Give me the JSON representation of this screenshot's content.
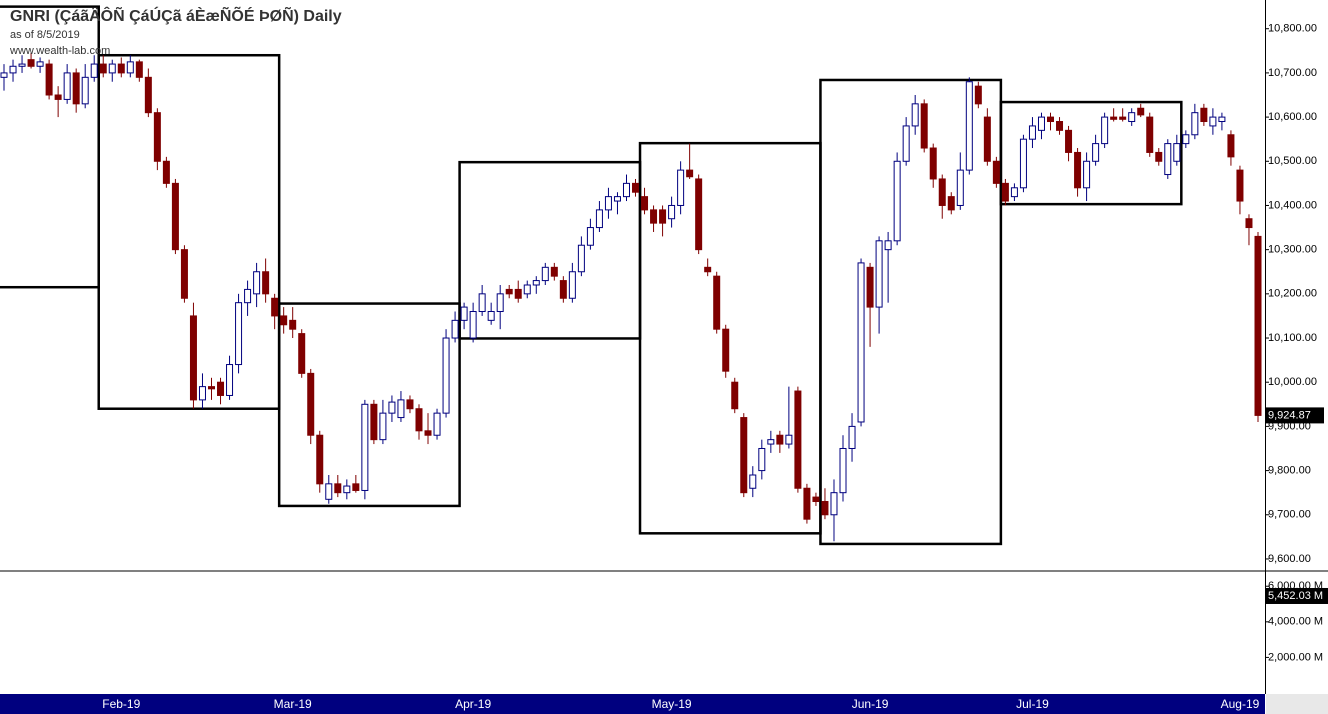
{
  "chart_data": {
    "type": "candlestick",
    "title": "GNRI (ÇáãÄÔÑ ÇáÚÇã áÈæÑÕÉ ÞØÑ) Daily",
    "subtitle": "as of 8/5/2019",
    "source": "www.wealth-lab.com",
    "categories": [
      null,
      null,
      null,
      null,
      null,
      null,
      null,
      null,
      null,
      null,
      null,
      null,
      null,
      "Feb-19",
      null,
      null,
      null,
      null,
      null,
      null,
      null,
      null,
      null,
      null,
      null,
      null,
      null,
      null,
      null,
      null,
      null,
      null,
      "Mar-19",
      null,
      null,
      null,
      null,
      null,
      null,
      null,
      null,
      null,
      null,
      null,
      null,
      null,
      null,
      null,
      null,
      null,
      null,
      null,
      "Apr-19",
      null,
      null,
      null,
      null,
      null,
      null,
      null,
      null,
      null,
      null,
      null,
      null,
      null,
      null,
      null,
      null,
      null,
      null,
      null,
      null,
      null,
      "May-19",
      null,
      null,
      null,
      null,
      null,
      null,
      null,
      null,
      null,
      null,
      null,
      null,
      null,
      null,
      null,
      null,
      null,
      null,
      null,
      null,
      null,
      "Jun-19",
      null,
      null,
      null,
      null,
      null,
      null,
      null,
      null,
      null,
      null,
      null,
      null,
      null,
      null,
      null,
      null,
      null,
      "Jul-19",
      null,
      null,
      null,
      null,
      null,
      null,
      null,
      null,
      null,
      null,
      null,
      null,
      null,
      null,
      null,
      null,
      null,
      null,
      null,
      null,
      null,
      null,
      "Aug-19",
      null,
      null
    ],
    "open": [
      10690,
      10700,
      10715,
      10730,
      10715,
      10720,
      10650,
      10640,
      10700,
      10630,
      10690,
      10720,
      10700,
      10720,
      10700,
      10725,
      10690,
      10610,
      10500,
      10450,
      10300,
      10150,
      9960,
      9990,
      10000,
      9970,
      10040,
      10180,
      10200,
      10250,
      10190,
      10150,
      10140,
      10110,
      10020,
      9880,
      9735,
      9770,
      9750,
      9770,
      9755,
      9950,
      9870,
      9930,
      9920,
      9960,
      9940,
      9890,
      9880,
      9930,
      10100,
      10140,
      10100,
      10160,
      10140,
      10160,
      10210,
      10210,
      10200,
      10220,
      10230,
      10260,
      10230,
      10190,
      10250,
      10310,
      10350,
      10390,
      10410,
      10420,
      10450,
      10420,
      10390,
      10390,
      10370,
      10400,
      10480,
      10460,
      10260,
      10240,
      10120,
      10000,
      9920,
      9760,
      9800,
      9860,
      9880,
      9860,
      9980,
      9760,
      9740,
      9730,
      9700,
      9750,
      9850,
      9910,
      10260,
      10170,
      10300,
      10320,
      10500,
      10580,
      10630,
      10530,
      10460,
      10420,
      10400,
      10480,
      10670,
      10600,
      10500,
      10450,
      10420,
      10440,
      10550,
      10570,
      10600,
      10590,
      10570,
      10520,
      10440,
      10500,
      10540,
      10600,
      10600,
      10590,
      10620,
      10600,
      10520,
      10470,
      10500,
      10540,
      10560,
      10620,
      10580,
      10590,
      10560,
      10480,
      10370,
      10330
    ],
    "high": [
      10720,
      10730,
      10740,
      10745,
      10735,
      10730,
      10670,
      10720,
      10710,
      10720,
      10740,
      10740,
      10730,
      10735,
      10740,
      10730,
      10710,
      10620,
      10510,
      10460,
      10310,
      10180,
      10020,
      10010,
      10010,
      10060,
      10200,
      10230,
      10270,
      10280,
      10200,
      10170,
      10170,
      10120,
      10030,
      9890,
      9790,
      9790,
      9780,
      9790,
      9960,
      9960,
      9960,
      9970,
      9980,
      9970,
      9950,
      9930,
      9940,
      10120,
      10160,
      10180,
      10180,
      10220,
      10180,
      10220,
      10220,
      10230,
      10230,
      10240,
      10270,
      10270,
      10240,
      10270,
      10330,
      10370,
      10410,
      10440,
      10430,
      10470,
      10460,
      10440,
      10400,
      10400,
      10420,
      10500,
      10540,
      10470,
      10280,
      10250,
      10130,
      10010,
      9930,
      9810,
      9870,
      9890,
      9890,
      9990,
      9990,
      9770,
      9750,
      9760,
      9780,
      9880,
      9930,
      10280,
      10270,
      10330,
      10340,
      10520,
      10600,
      10650,
      10640,
      10540,
      10470,
      10430,
      10520,
      10690,
      10680,
      10620,
      10510,
      10460,
      10450,
      10560,
      10600,
      10610,
      10610,
      10600,
      10580,
      10530,
      10520,
      10560,
      10610,
      10620,
      10620,
      10620,
      10630,
      10610,
      10530,
      10550,
      10560,
      10570,
      10630,
      10630,
      10620,
      10610,
      10570,
      10490,
      10380,
      10340
    ],
    "low": [
      10660,
      10680,
      10700,
      10710,
      10700,
      10640,
      10600,
      10630,
      10610,
      10620,
      10680,
      10690,
      10680,
      10690,
      10690,
      10680,
      10600,
      10480,
      10440,
      10290,
      10180,
      9940,
      9940,
      9960,
      9950,
      9960,
      10020,
      10150,
      10170,
      10180,
      10120,
      10110,
      10100,
      10010,
      9860,
      9750,
      9725,
      9740,
      9735,
      9750,
      9735,
      9860,
      9860,
      9910,
      9910,
      9930,
      9870,
      9860,
      9870,
      9920,
      10090,
      10120,
      10090,
      10150,
      10130,
      10120,
      10190,
      10180,
      10190,
      10200,
      10220,
      10230,
      10180,
      10180,
      10240,
      10300,
      10340,
      10370,
      10380,
      10410,
      10420,
      10380,
      10340,
      10330,
      10350,
      10380,
      10460,
      10290,
      10240,
      10110,
      10010,
      9930,
      9740,
      9740,
      9780,
      9840,
      9840,
      9850,
      9750,
      9680,
      9720,
      9690,
      9640,
      9730,
      9820,
      9900,
      10080,
      10110,
      10180,
      10310,
      10490,
      10560,
      10520,
      10440,
      10370,
      10380,
      10390,
      10470,
      10620,
      10490,
      10440,
      10400,
      10410,
      10430,
      10530,
      10550,
      10570,
      10560,
      10500,
      10420,
      10410,
      10490,
      10530,
      10590,
      10590,
      10580,
      10600,
      10510,
      10490,
      10460,
      10490,
      10530,
      10550,
      10580,
      10560,
      10570,
      10490,
      10380,
      10310,
      9910
    ],
    "close": [
      10700,
      10715,
      10720,
      10715,
      10725,
      10650,
      10640,
      10700,
      10630,
      10690,
      10720,
      10700,
      10720,
      10700,
      10725,
      10690,
      10610,
      10500,
      10450,
      10300,
      10190,
      9960,
      9990,
      9985,
      9970,
      10040,
      10180,
      10210,
      10250,
      10200,
      10150,
      10130,
      10120,
      10020,
      9880,
      9770,
      9770,
      9750,
      9765,
      9755,
      9950,
      9870,
      9930,
      9955,
      9960,
      9940,
      9890,
      9880,
      9930,
      10100,
      10140,
      10170,
      10160,
      10200,
      10160,
      10200,
      10200,
      10190,
      10220,
      10230,
      10260,
      10240,
      10190,
      10250,
      10310,
      10350,
      10390,
      10420,
      10420,
      10450,
      10430,
      10390,
      10360,
      10360,
      10400,
      10480,
      10465,
      10300,
      10250,
      10120,
      10025,
      9940,
      9750,
      9790,
      9850,
      9870,
      9860,
      9880,
      9760,
      9690,
      9730,
      9700,
      9750,
      9850,
      9900,
      10270,
      10170,
      10320,
      10320,
      10500,
      10580,
      10630,
      10530,
      10460,
      10400,
      10390,
      10480,
      10680,
      10630,
      10500,
      10450,
      10410,
      10440,
      10550,
      10580,
      10600,
      10590,
      10570,
      10520,
      10440,
      10500,
      10540,
      10600,
      10595,
      10595,
      10610,
      10605,
      10520,
      10500,
      10540,
      10540,
      10560,
      10610,
      10590,
      10600,
      10600,
      10510,
      10410,
      10350,
      9924.87
    ],
    "last_price_label": "9,924.87",
    "up_color": "#00007f",
    "down_color": "#7f0000",
    "ylim": [
      9575,
      10865
    ],
    "yticks": [
      {
        "value": 10800,
        "label": "10,800.00"
      },
      {
        "value": 10700,
        "label": "10,700.00"
      },
      {
        "value": 10600,
        "label": "10,600.00"
      },
      {
        "value": 10500,
        "label": "10,500.00"
      },
      {
        "value": 10400,
        "label": "10,400.00"
      },
      {
        "value": 10300,
        "label": "10,300.00"
      },
      {
        "value": 10200,
        "label": "10,200.00"
      },
      {
        "value": 10100,
        "label": "10,100.00"
      },
      {
        "value": 10000,
        "label": "10,000.00"
      },
      {
        "value": 9900,
        "label": "9,900.00"
      },
      {
        "value": 9800,
        "label": "9,800.00"
      },
      {
        "value": 9700,
        "label": "9,700.00"
      },
      {
        "value": 9600,
        "label": "9,600.00"
      }
    ],
    "boxes": [
      {
        "high": 10850,
        "low": 10215
      },
      {
        "high": 10740,
        "low": 9940
      },
      {
        "high": 10178,
        "low": 9720
      },
      {
        "high": 10498,
        "low": 10099
      },
      {
        "high": 10541,
        "low": 9658
      },
      {
        "high": 10684,
        "low": 9634
      },
      {
        "high": 10634,
        "low": 10403
      }
    ],
    "box_color": "#000000",
    "volume": {
      "ylim": [
        0,
        6800
      ],
      "yticks": [
        {
          "value": 6000,
          "label": "6,000.00 M"
        },
        {
          "value": 4000,
          "label": "4,000.00 M"
        },
        {
          "value": 2000,
          "label": "2,000.00 M"
        }
      ],
      "last": 5452.03,
      "last_label": "5,452.03 M"
    }
  }
}
